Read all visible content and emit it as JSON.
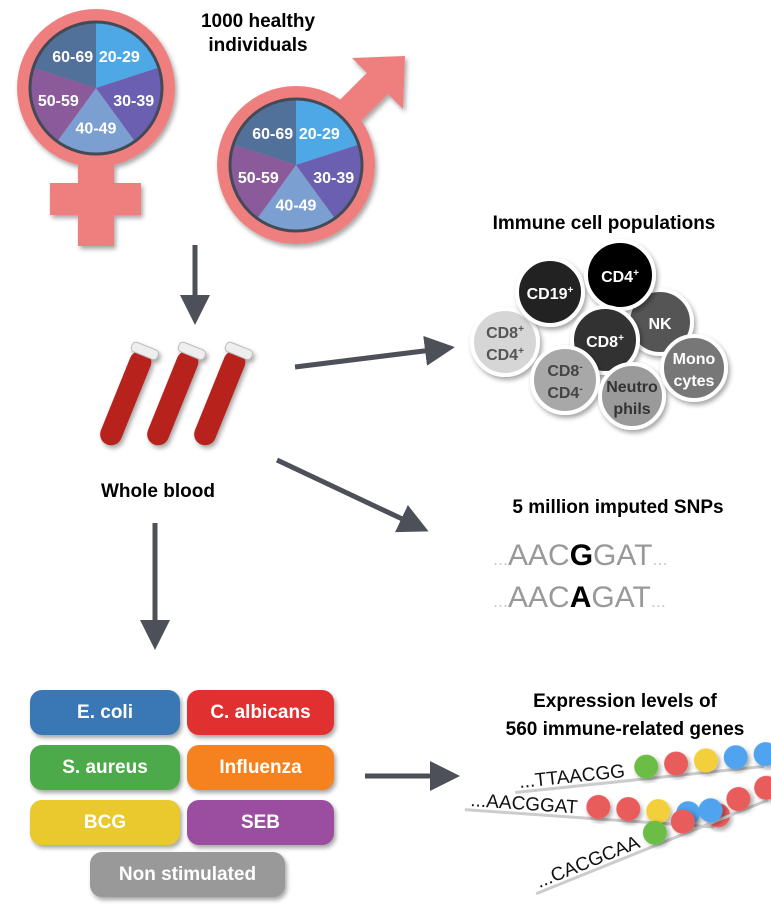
{
  "cohort": {
    "title_line1": "1000 healthy",
    "title_line2": "individuals",
    "age_groups": [
      "20-29",
      "30-39",
      "40-49",
      "50-59",
      "60-69"
    ],
    "age_colors": [
      "#4fa8e6",
      "#6a5fb0",
      "#7a9fd0",
      "#8a5a9a",
      "#52719a"
    ],
    "symbol_color": "#ef7f7f"
  },
  "sample": {
    "label": "Whole blood"
  },
  "immune": {
    "title": "Immune cell populations",
    "cells": [
      {
        "l1": "CD19",
        "sup1": "+",
        "l2": "",
        "sup2": "",
        "color": "#222222",
        "text": "#ffffff"
      },
      {
        "l1": "CD4",
        "sup1": "+",
        "l2": "",
        "sup2": "",
        "color": "#000000",
        "text": "#ffffff"
      },
      {
        "l1": "NK",
        "sup1": "",
        "l2": "",
        "sup2": "",
        "color": "#555555",
        "text": "#ffffff"
      },
      {
        "l1": "CD8",
        "sup1": "+",
        "l2": "",
        "sup2": "",
        "color": "#333333",
        "text": "#ffffff"
      },
      {
        "l1": "CD8",
        "sup1": "+",
        "l2": "CD4",
        "sup2": "+",
        "color": "#d6d6d6",
        "text": "#555555"
      },
      {
        "l1": "CD8",
        "sup1": "-",
        "l2": "CD4",
        "sup2": "-",
        "color": "#a8a8a8",
        "text": "#444444"
      },
      {
        "l1": "Neutro",
        "sup1": "",
        "l2": "phils",
        "sup2": "",
        "color": "#9a9a9a",
        "text": "#333333"
      },
      {
        "l1": "Mono",
        "sup1": "",
        "l2": "cytes",
        "sup2": "",
        "color": "#777777",
        "text": "#ffffff"
      }
    ]
  },
  "snps": {
    "title": "5 million imputed SNPs",
    "seq1": {
      "pre": "AAC",
      "var": "G",
      "post": "GAT"
    },
    "seq2": {
      "pre": "AAC",
      "var": "A",
      "post": "GAT"
    },
    "dots": "..."
  },
  "stimuli": [
    {
      "label": "E. coli",
      "color": "#3a78b5"
    },
    {
      "label": "C. albicans",
      "color": "#e0302f"
    },
    {
      "label": "S. aureus",
      "color": "#4daa4a"
    },
    {
      "label": "Influenza",
      "color": "#f5821f"
    },
    {
      "label": "BCG",
      "color": "#e9c92e"
    },
    {
      "label": "SEB",
      "color": "#9b4ea0"
    },
    {
      "label": "Non stimulated",
      "color": "#999999"
    }
  ],
  "expression": {
    "title_line1": "Expression levels of",
    "title_line2": "560 immune-related genes",
    "genes": [
      {
        "seq": "...TTAACGG",
        "beads": [
          "#6cbd45",
          "#e85c5c",
          "#f3cf3a",
          "#4fa3ef",
          "#4fa3ef"
        ]
      },
      {
        "seq": "...AACGGAT",
        "beads": [
          "#e85c5c",
          "#e85c5c",
          "#f3cf3a",
          "#4fa3ef",
          "#e85c5c"
        ]
      },
      {
        "seq": "...CACGCAA",
        "beads": [
          "#6cbd45",
          "#e85c5c",
          "#4fa3ef",
          "#e85c5c",
          "#e85c5c"
        ]
      }
    ]
  },
  "arrow_color": "#4d5058"
}
